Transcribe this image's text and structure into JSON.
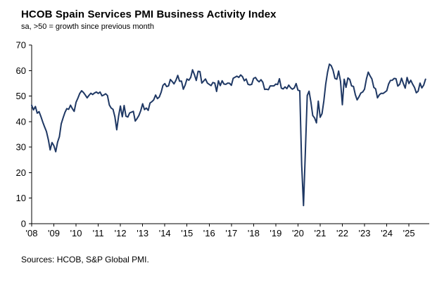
{
  "header": {
    "title": "HCOB Spain Services PMI Business Activity Index",
    "subtitle": "sa, >50 = growth since previous month"
  },
  "footer": {
    "source": "Sources: HCOB, S&P Global PMI."
  },
  "chart_data": {
    "type": "line",
    "title": "HCOB Spain Services PMI Business Activity Index",
    "subtitle": "sa, >50 = growth since previous month",
    "ylim": [
      0,
      70
    ],
    "yticks": [
      0,
      10,
      20,
      30,
      40,
      50,
      60,
      70
    ],
    "xtick_labels": [
      "'08",
      "'09",
      "'10",
      "'11",
      "'12",
      "'13",
      "'14",
      "'15",
      "'16",
      "'17",
      "'18",
      "'19",
      "'20",
      "'21",
      "'22",
      "'23",
      "'24",
      "'25"
    ],
    "grid": false,
    "legend": "none",
    "line_color": "#1f3864",
    "series": [
      {
        "name": "HCOB Spain Services PMI Business Activity Index",
        "start_year": 2008,
        "frequency": "monthly",
        "values": [
          46.4,
          44.6,
          45.9,
          43.3,
          43.9,
          42.0,
          39.8,
          37.9,
          36.1,
          32.9,
          28.9,
          31.8,
          30.6,
          28.2,
          31.9,
          34.1,
          39.1,
          41.5,
          43.6,
          45.1,
          44.8,
          46.4,
          45.1,
          44.0,
          47.6,
          49.2,
          51.0,
          52.1,
          51.4,
          50.4,
          49.3,
          50.3,
          51.1,
          50.6,
          51.2,
          51.6,
          51.0,
          51.6,
          50.1,
          50.4,
          50.9,
          50.2,
          46.5,
          45.3,
          44.8,
          41.8,
          36.8,
          42.1,
          46.1,
          41.9,
          46.3,
          42.1,
          41.8,
          43.4,
          43.7,
          44.0,
          40.2,
          41.2,
          42.4,
          44.3,
          47.0,
          44.7,
          45.3,
          44.4,
          47.3,
          47.8,
          48.5,
          50.4,
          49.0,
          49.6,
          51.5,
          54.2,
          54.9,
          53.7,
          54.0,
          56.5,
          55.7,
          54.8,
          56.2,
          58.1,
          55.8,
          55.9,
          52.7,
          54.3,
          56.7,
          56.2,
          57.3,
          60.3,
          58.4,
          56.1,
          59.7,
          59.6,
          55.1,
          55.9,
          56.7,
          55.1,
          54.6,
          54.1,
          55.3,
          55.1,
          51.8,
          56.0,
          54.1,
          56.0,
          54.7,
          54.6,
          55.1,
          55.0,
          54.2,
          57.0,
          57.4,
          57.8,
          57.3,
          58.3,
          57.6,
          56.0,
          56.7,
          54.6,
          54.4,
          54.6,
          56.9,
          57.3,
          56.2,
          55.6,
          56.4,
          55.4,
          52.6,
          52.7,
          52.5,
          54.0,
          54.0,
          54.0,
          54.7,
          54.5,
          56.8,
          53.1,
          52.8,
          53.6,
          52.9,
          54.3,
          53.3,
          52.7,
          53.2,
          54.9,
          52.3,
          52.1,
          23.0,
          7.1,
          27.9,
          50.2,
          51.9,
          47.7,
          42.4,
          41.4,
          39.5,
          48.0,
          41.7,
          43.1,
          48.1,
          54.6,
          59.4,
          62.5,
          61.9,
          60.1,
          56.9,
          56.6,
          59.8,
          55.8,
          46.6,
          56.6,
          53.4,
          57.1,
          56.5,
          54.0,
          53.8,
          50.6,
          48.5,
          49.7,
          51.2,
          51.6,
          52.7,
          56.7,
          59.4,
          57.9,
          56.7,
          53.4,
          52.8,
          49.3,
          50.5,
          51.1,
          51.0,
          51.5,
          52.1,
          54.7,
          56.1,
          56.2,
          56.9,
          56.8,
          53.9,
          54.6,
          57.0,
          54.9,
          53.1,
          57.3,
          54.9,
          56.2,
          54.7,
          53.4,
          51.3,
          51.9,
          55.1,
          53.2,
          54.3,
          56.6
        ]
      }
    ]
  }
}
